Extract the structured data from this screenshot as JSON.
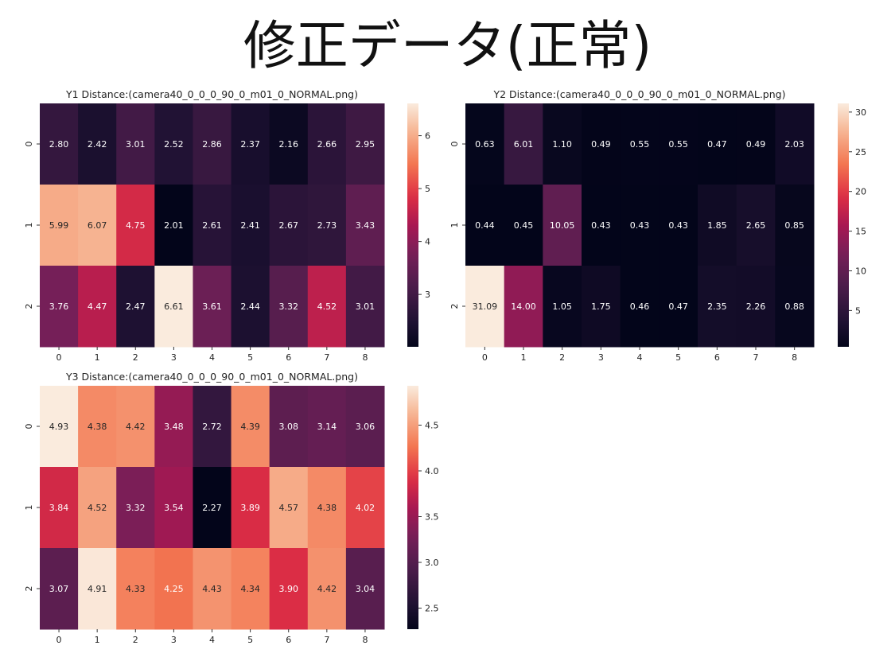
{
  "title": "修正データ(正常)",
  "chart_data": [
    {
      "type": "heatmap",
      "title": "Y1 Distance:(camera40_0_0_0_90_0_m01_0_NORMAL.png)",
      "x_ticks": [
        "0",
        "1",
        "2",
        "3",
        "4",
        "5",
        "6",
        "7",
        "8"
      ],
      "y_ticks": [
        "0",
        "1",
        "2"
      ],
      "values": [
        [
          2.8,
          2.42,
          3.01,
          2.52,
          2.86,
          2.37,
          2.16,
          2.66,
          2.95
        ],
        [
          5.99,
          6.07,
          4.75,
          2.01,
          2.61,
          2.41,
          2.67,
          2.73,
          3.43
        ],
        [
          3.76,
          4.47,
          2.47,
          6.61,
          3.61,
          2.44,
          3.32,
          4.52,
          3.01
        ]
      ],
      "labels": [
        [
          "2.80",
          "2.42",
          "3.01",
          "2.52",
          "2.86",
          "2.37",
          "2.16",
          "2.66",
          "2.95"
        ],
        [
          "5.99",
          "6.07",
          "4.75",
          "2.01",
          "2.61",
          "2.41",
          "2.67",
          "2.73",
          "3.43"
        ],
        [
          "3.76",
          "4.47",
          "2.47",
          "6.61",
          "3.61",
          "2.44",
          "3.32",
          "4.52",
          "3.01"
        ]
      ],
      "colorbar": {
        "range": [
          2.01,
          6.61
        ],
        "ticks": [
          "3",
          "4",
          "5",
          "6"
        ]
      },
      "colormap": "rocket"
    },
    {
      "type": "heatmap",
      "title": "Y2 Distance:(camera40_0_0_0_90_0_m01_0_NORMAL.png)",
      "x_ticks": [
        "0",
        "1",
        "2",
        "3",
        "4",
        "5",
        "6",
        "7",
        "8"
      ],
      "y_ticks": [
        "0",
        "1",
        "2"
      ],
      "values": [
        [
          0.63,
          6.01,
          1.1,
          0.49,
          0.55,
          0.55,
          0.47,
          0.49,
          2.03
        ],
        [
          0.44,
          0.45,
          10.05,
          0.43,
          0.43,
          0.43,
          1.85,
          2.65,
          0.85
        ],
        [
          31.09,
          14.0,
          1.05,
          1.75,
          0.46,
          0.47,
          2.35,
          2.26,
          0.88
        ]
      ],
      "labels": [
        [
          "0.63",
          "6.01",
          "1.10",
          "0.49",
          "0.55",
          "0.55",
          "0.47",
          "0.49",
          "2.03"
        ],
        [
          "0.44",
          "0.45",
          "10.05",
          "0.43",
          "0.43",
          "0.43",
          "1.85",
          "2.65",
          "0.85"
        ],
        [
          "31.09",
          "14.00",
          "1.05",
          "1.75",
          "0.46",
          "0.47",
          "2.35",
          "2.26",
          "0.88"
        ]
      ],
      "colorbar": {
        "range": [
          0.43,
          31.09
        ],
        "ticks": [
          "5",
          "10",
          "15",
          "20",
          "25",
          "30"
        ]
      },
      "colormap": "rocket"
    },
    {
      "type": "heatmap",
      "title": "Y3 Distance:(camera40_0_0_0_90_0_m01_0_NORMAL.png)",
      "x_ticks": [
        "0",
        "1",
        "2",
        "3",
        "4",
        "5",
        "6",
        "7",
        "8"
      ],
      "y_ticks": [
        "0",
        "1",
        "2"
      ],
      "values": [
        [
          4.93,
          4.38,
          4.42,
          3.48,
          2.72,
          4.39,
          3.08,
          3.14,
          3.06
        ],
        [
          3.84,
          4.52,
          3.32,
          3.54,
          2.27,
          3.89,
          4.57,
          4.38,
          4.02
        ],
        [
          3.07,
          4.91,
          4.33,
          4.25,
          4.43,
          4.34,
          3.9,
          4.42,
          3.04
        ]
      ],
      "labels": [
        [
          "4.93",
          "4.38",
          "4.42",
          "3.48",
          "2.72",
          "4.39",
          "3.08",
          "3.14",
          "3.06"
        ],
        [
          "3.84",
          "4.52",
          "3.32",
          "3.54",
          "2.27",
          "3.89",
          "4.57",
          "4.38",
          "4.02"
        ],
        [
          "3.07",
          "4.91",
          "4.33",
          "4.25",
          "4.43",
          "4.34",
          "3.90",
          "4.42",
          "3.04"
        ]
      ],
      "colorbar": {
        "range": [
          2.27,
          4.93
        ],
        "ticks": [
          "2.5",
          "3.0",
          "3.5",
          "4.0",
          "4.5"
        ]
      },
      "colormap": "rocket"
    }
  ]
}
